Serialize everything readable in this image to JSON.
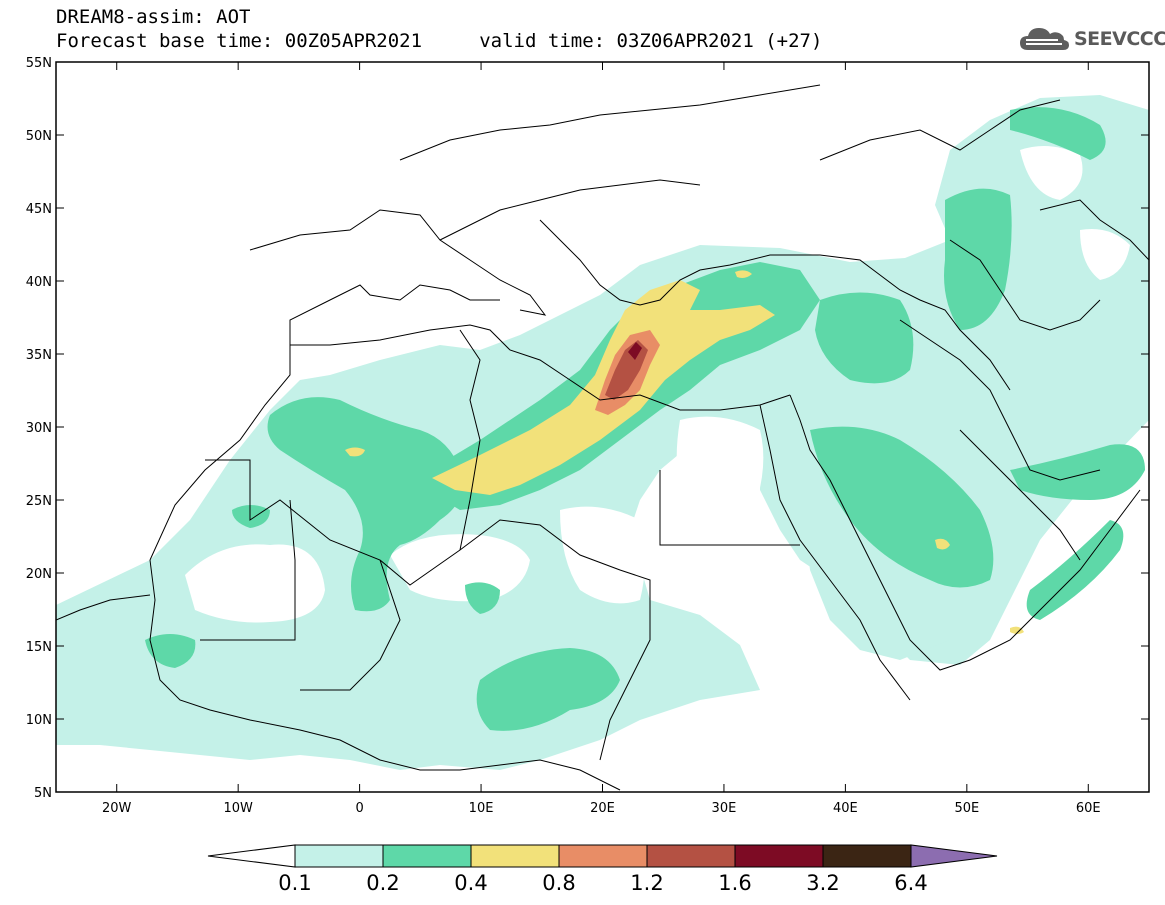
{
  "header": {
    "title_line1": "DREAM8-assim: AOT",
    "title_line2": "Forecast base time: 00Z05APR2021     valid time: 03Z06APR2021 (+27)",
    "logo_text": "SEEVCCC",
    "logo_icon": "cloud-icon"
  },
  "map": {
    "lon_range": [
      -25,
      65
    ],
    "lat_range": [
      5,
      55
    ],
    "lat_ticks": [
      {
        "value": 55,
        "label": "55N"
      },
      {
        "value": 50,
        "label": "50N"
      },
      {
        "value": 45,
        "label": "45N"
      },
      {
        "value": 40,
        "label": "40N"
      },
      {
        "value": 35,
        "label": "35N"
      },
      {
        "value": 30,
        "label": "30N"
      },
      {
        "value": 25,
        "label": "25N"
      },
      {
        "value": 20,
        "label": "20N"
      },
      {
        "value": 15,
        "label": "15N"
      },
      {
        "value": 10,
        "label": "10N"
      },
      {
        "value": 5,
        "label": "5N"
      }
    ],
    "lon_ticks": [
      {
        "value": -20,
        "label": "20W"
      },
      {
        "value": -10,
        "label": "10W"
      },
      {
        "value": 0,
        "label": "0"
      },
      {
        "value": 10,
        "label": "10E"
      },
      {
        "value": 20,
        "label": "20E"
      },
      {
        "value": 30,
        "label": "30E"
      },
      {
        "value": 40,
        "label": "40E"
      },
      {
        "value": 50,
        "label": "50E"
      },
      {
        "value": 60,
        "label": "60E"
      }
    ],
    "colors": {
      "c01": "#c4f1e8",
      "c02": "#5ed8a8",
      "c04": "#f2e17a",
      "c08": "#e88d66",
      "c12": "#b45143",
      "c16": "#7d0b24",
      "c32": "#3b2514",
      "c64": "#8c6db0",
      "border": "#000000"
    }
  },
  "colorbar": {
    "labels": [
      "0.1",
      "0.2",
      "0.4",
      "0.8",
      "1.2",
      "1.6",
      "3.2",
      "6.4"
    ],
    "colors": [
      "#ffffff",
      "#c4f1e8",
      "#5ed8a8",
      "#f2e17a",
      "#e88d66",
      "#b45143",
      "#7d0b24",
      "#3b2514",
      "#8c6db0"
    ]
  }
}
